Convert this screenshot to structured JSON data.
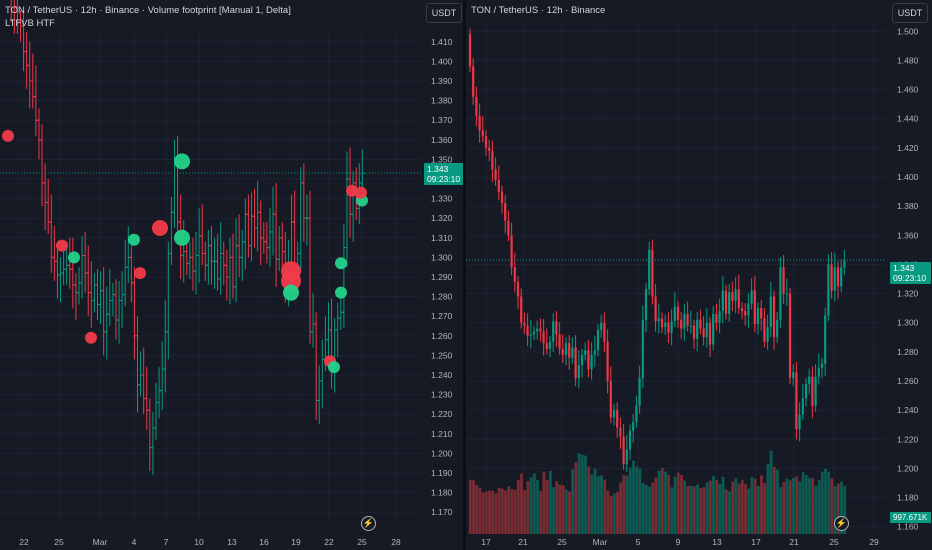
{
  "colors": {
    "bg": "#161a25",
    "grid": "#1f2330",
    "up": "#089981",
    "down": "#f23645",
    "up_bright": "#22d38a",
    "down_bright": "#f23a4a",
    "text": "#d1d4dc",
    "axis_text": "#b2b5be",
    "last_price": "#089981"
  },
  "left": {
    "title": "TON / TetherUS · 12h · Binance · Volume footprint [Manual 1, Delta]",
    "subtitle": "LTFVB HTF",
    "currency": "USDT",
    "price_label": "1.343",
    "countdown": "09:23:10",
    "icon": "lightning-icon",
    "y_ticks": [
      "1.410",
      "1.400",
      "1.390",
      "1.380",
      "1.370",
      "1.360",
      "1.350",
      "1.340",
      "1.330",
      "1.320",
      "1.310",
      "1.300",
      "1.290",
      "1.280",
      "1.270",
      "1.260",
      "1.250",
      "1.240",
      "1.230",
      "1.220",
      "1.210",
      "1.200",
      "1.190",
      "1.180",
      "1.170"
    ],
    "x_ticks": [
      "22",
      "25",
      "Mar",
      "4",
      "7",
      "10",
      "13",
      "16",
      "19",
      "22",
      "25",
      "28"
    ]
  },
  "right": {
    "title": "TON / TetherUS · 12h · Binance",
    "currency": "USDT",
    "price_label": "1.343",
    "countdown": "09:23:10",
    "volume_label": "997.671K",
    "icon": "lightning-icon",
    "y_ticks": [
      "1.500",
      "1.480",
      "1.460",
      "1.440",
      "1.420",
      "1.400",
      "1.380",
      "1.360",
      "1.340",
      "1.320",
      "1.300",
      "1.280",
      "1.260",
      "1.240",
      "1.220",
      "1.200",
      "1.180",
      "1.160"
    ],
    "x_ticks": [
      "17",
      "21",
      "25",
      "Mar",
      "5",
      "9",
      "13",
      "17",
      "21",
      "25",
      "29"
    ]
  },
  "chart_data": {
    "type": "candlestick",
    "symbol": "TON / TetherUS",
    "timeframe": "12h",
    "exchange": "Binance",
    "last_price": 1.343,
    "close": [
      1.476,
      1.455,
      1.442,
      1.432,
      1.428,
      1.42,
      1.418,
      1.405,
      1.398,
      1.39,
      1.382,
      1.37,
      1.36,
      1.338,
      1.328,
      1.318,
      1.3,
      1.298,
      1.291,
      1.292,
      1.294,
      1.296,
      1.294,
      1.286,
      1.282,
      1.287,
      1.301,
      1.292,
      1.282,
      1.278,
      1.286,
      1.276,
      1.283,
      1.262,
      1.271,
      1.278,
      1.281,
      1.268,
      1.278,
      1.281,
      1.295,
      1.3,
      1.287,
      1.26,
      1.235,
      1.24,
      1.228,
      1.222,
      1.203,
      1.213,
      1.226,
      1.232,
      1.243,
      1.262,
      1.302,
      1.323,
      1.35,
      1.318,
      1.301,
      1.303,
      1.297,
      1.3,
      1.293,
      1.301,
      1.311,
      1.302,
      1.296,
      1.306,
      1.298,
      1.298,
      1.289,
      1.302,
      1.296,
      1.29,
      1.3,
      1.285,
      1.306,
      1.3,
      1.308,
      1.322,
      1.306,
      1.321,
      1.315,
      1.323,
      1.31,
      1.308,
      1.305,
      1.313,
      1.322,
      1.299,
      1.31,
      1.303,
      1.287,
      1.297,
      1.318,
      1.29,
      1.302,
      1.338,
      1.32,
      1.32,
      1.262,
      1.266,
      1.227,
      1.237,
      1.248,
      1.258,
      1.263,
      1.243,
      1.263,
      1.269,
      1.272,
      1.305,
      1.34,
      1.322,
      1.338,
      1.325,
      1.338,
      1.343
    ],
    "volume_k": [
      1150,
      1140,
      1040,
      980,
      880,
      900,
      920,
      920,
      860,
      980,
      960,
      920,
      1010,
      950,
      940,
      1150,
      1280,
      930,
      1120,
      1200,
      1280,
      1140,
      910,
      1320,
      1150,
      1340,
      990,
      1120,
      1050,
      1030,
      940,
      900,
      1370,
      1520,
      1710,
      1680,
      1660,
      1430,
      1260,
      1380,
      1220,
      1240,
      1150,
      920,
      800,
      860,
      890,
      1090,
      1250,
      1230,
      1410,
      1550,
      1430,
      1390,
      1080,
      1040,
      1000,
      1090,
      1190,
      1340,
      1400,
      1320,
      1250,
      990,
      1210,
      1300,
      1250,
      1130,
      1020,
      1020,
      1010,
      1050,
      970,
      990,
      1090,
      1130,
      1230,
      1140,
      1060,
      1210,
      940,
      900,
      1110,
      1180,
      1070,
      1140,
      1060,
      960,
      1210,
      1170,
      1020,
      1240,
      1080,
      1490,
      1760,
      1420,
      1360,
      990,
      1100,
      1170,
      1140,
      1190,
      1220,
      1110,
      1310,
      1250,
      1190,
      1180,
      1020,
      1140,
      1320,
      1380,
      1320,
      1180,
      1010,
      1070,
      1110,
      1020
    ],
    "delta_bubbles": [
      {
        "price": 1.362,
        "side": "sell",
        "size": "medium"
      },
      {
        "price": 1.306,
        "side": "sell",
        "size": "medium"
      },
      {
        "price": 1.3,
        "side": "buy",
        "size": "medium"
      },
      {
        "price": 1.259,
        "side": "sell",
        "size": "medium"
      },
      {
        "price": 1.309,
        "side": "buy",
        "size": "medium"
      },
      {
        "price": 1.292,
        "side": "sell",
        "size": "medium"
      },
      {
        "price": 1.315,
        "side": "sell",
        "size": "large"
      },
      {
        "price": 1.31,
        "side": "buy",
        "size": "large"
      },
      {
        "price": 1.349,
        "side": "buy",
        "size": "large"
      },
      {
        "price": 1.293,
        "side": "sell",
        "size": "xlarge"
      },
      {
        "price": 1.288,
        "side": "sell",
        "size": "xlarge"
      },
      {
        "price": 1.282,
        "side": "buy",
        "size": "large"
      },
      {
        "price": 1.247,
        "side": "sell",
        "size": "medium"
      },
      {
        "price": 1.244,
        "side": "buy",
        "size": "medium"
      },
      {
        "price": 1.297,
        "side": "buy",
        "size": "medium"
      },
      {
        "price": 1.282,
        "side": "buy",
        "size": "medium"
      },
      {
        "price": 1.334,
        "side": "sell",
        "size": "medium"
      },
      {
        "price": 1.329,
        "side": "buy",
        "size": "medium"
      },
      {
        "price": 1.333,
        "side": "sell",
        "size": "medium"
      }
    ],
    "left_ylim": [
      1.165,
      1.415
    ],
    "right_ylim": [
      1.155,
      1.505
    ],
    "grid": true
  }
}
